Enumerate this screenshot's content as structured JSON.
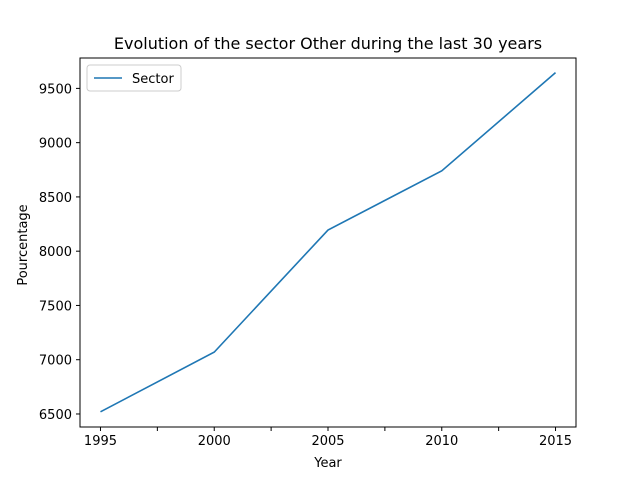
{
  "chart_data": {
    "type": "line",
    "title": "Evolution of the sector Other during the last 30 years",
    "xlabel": "Year",
    "ylabel": "Pourcentage",
    "x": [
      1995,
      2000,
      2005,
      2010,
      2015
    ],
    "series": [
      {
        "name": "Sector",
        "values": [
          6520,
          7070,
          8195,
          8740,
          9645
        ],
        "color": "#1f77b4"
      }
    ],
    "xlim": [
      1994.1,
      2015.9
    ],
    "ylim": [
      6380,
      9780
    ],
    "x_ticks_labeled": [
      1995,
      2000,
      2005,
      2010,
      2015
    ],
    "x_ticks_unlabeled": [
      1997.5,
      2002.5,
      2007.5,
      2012.5
    ],
    "y_ticks": [
      6500,
      7000,
      7500,
      8000,
      8500,
      9000,
      9500
    ],
    "legend_position": "upper-left",
    "grid": false
  }
}
